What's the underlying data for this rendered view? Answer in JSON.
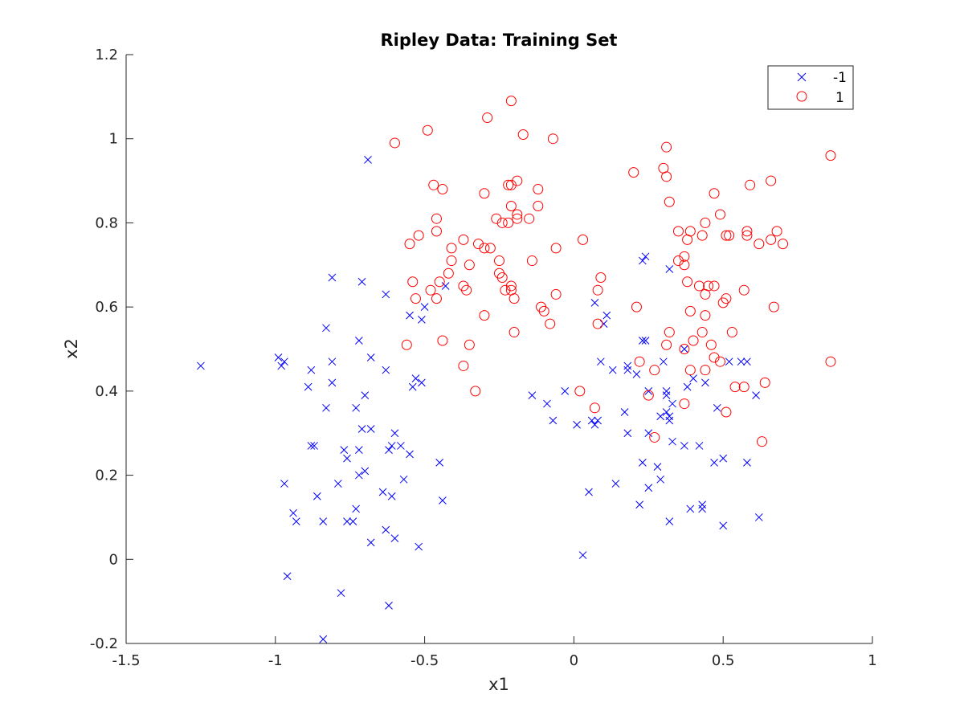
{
  "chart_data": {
    "type": "scatter",
    "title": "Ripley Data: Training Set",
    "xlabel": "x1",
    "ylabel": "x2",
    "xlim": [
      -1.5,
      1
    ],
    "ylim": [
      -0.2,
      1.2
    ],
    "xticks": [
      "-1.5",
      "-1",
      "-0.5",
      "0",
      "0.5",
      "1"
    ],
    "yticks": [
      "-0.2",
      "0",
      "0.2",
      "0.4",
      "0.6",
      "0.8",
      "1",
      "1.2"
    ],
    "grid": false,
    "legend_position": "top-right",
    "series": [
      {
        "name": "-1",
        "marker": "x",
        "color": "#0000ff",
        "points": [
          [
            -1.25,
            0.46
          ],
          [
            -0.69,
            0.95
          ],
          [
            -0.99,
            0.48
          ],
          [
            -0.98,
            0.46
          ],
          [
            -0.97,
            0.47
          ],
          [
            -0.81,
            0.67
          ],
          [
            -0.83,
            0.55
          ],
          [
            -0.71,
            0.66
          ],
          [
            -0.63,
            0.63
          ],
          [
            -0.88,
            0.45
          ],
          [
            -0.81,
            0.47
          ],
          [
            -0.81,
            0.42
          ],
          [
            -0.89,
            0.41
          ],
          [
            -0.83,
            0.36
          ],
          [
            -0.72,
            0.52
          ],
          [
            -0.68,
            0.48
          ],
          [
            -0.63,
            0.45
          ],
          [
            -0.7,
            0.39
          ],
          [
            -0.73,
            0.36
          ],
          [
            -0.71,
            0.31
          ],
          [
            -0.68,
            0.31
          ],
          [
            -0.55,
            0.58
          ],
          [
            -0.5,
            0.6
          ],
          [
            -0.51,
            0.57
          ],
          [
            -0.43,
            0.65
          ],
          [
            -0.54,
            0.41
          ],
          [
            -0.53,
            0.43
          ],
          [
            -0.51,
            0.42
          ],
          [
            -0.88,
            0.27
          ],
          [
            -0.87,
            0.27
          ],
          [
            -0.77,
            0.26
          ],
          [
            -0.76,
            0.24
          ],
          [
            -0.72,
            0.26
          ],
          [
            -0.6,
            0.3
          ],
          [
            -0.61,
            0.27
          ],
          [
            -0.58,
            0.27
          ],
          [
            -0.55,
            0.25
          ],
          [
            -0.62,
            0.26
          ],
          [
            -0.72,
            0.2
          ],
          [
            -0.7,
            0.21
          ],
          [
            -0.57,
            0.19
          ],
          [
            -0.45,
            0.23
          ],
          [
            -0.97,
            0.18
          ],
          [
            -0.79,
            0.18
          ],
          [
            -0.86,
            0.15
          ],
          [
            -0.64,
            0.16
          ],
          [
            -0.61,
            0.15
          ],
          [
            -0.94,
            0.11
          ],
          [
            -0.93,
            0.09
          ],
          [
            -0.84,
            0.09
          ],
          [
            -0.76,
            0.09
          ],
          [
            -0.74,
            0.09
          ],
          [
            -0.73,
            0.12
          ],
          [
            -0.44,
            0.14
          ],
          [
            -0.63,
            0.07
          ],
          [
            -0.6,
            0.05
          ],
          [
            -0.68,
            0.04
          ],
          [
            -0.52,
            0.03
          ],
          [
            -0.96,
            -0.04
          ],
          [
            -0.78,
            -0.08
          ],
          [
            -0.62,
            -0.11
          ],
          [
            -0.84,
            -0.19
          ],
          [
            0.24,
            0.72
          ],
          [
            0.23,
            0.71
          ],
          [
            0.32,
            0.69
          ],
          [
            0.07,
            0.61
          ],
          [
            0.11,
            0.58
          ],
          [
            0.1,
            0.56
          ],
          [
            0.24,
            0.52
          ],
          [
            0.23,
            0.52
          ],
          [
            0.37,
            0.5
          ],
          [
            0.09,
            0.47
          ],
          [
            0.13,
            0.45
          ],
          [
            0.18,
            0.46
          ],
          [
            0.18,
            0.45
          ],
          [
            0.21,
            0.44
          ],
          [
            0.3,
            0.47
          ],
          [
            0.4,
            0.43
          ],
          [
            0.38,
            0.41
          ],
          [
            0.44,
            0.42
          ],
          [
            0.52,
            0.47
          ],
          [
            0.56,
            0.47
          ],
          [
            0.58,
            0.47
          ],
          [
            -0.14,
            0.39
          ],
          [
            -0.03,
            0.4
          ],
          [
            -0.09,
            0.37
          ],
          [
            -0.07,
            0.33
          ],
          [
            0.01,
            0.32
          ],
          [
            0.06,
            0.33
          ],
          [
            0.07,
            0.32
          ],
          [
            0.08,
            0.33
          ],
          [
            0.25,
            0.4
          ],
          [
            0.31,
            0.4
          ],
          [
            0.31,
            0.39
          ],
          [
            0.33,
            0.37
          ],
          [
            0.17,
            0.35
          ],
          [
            0.29,
            0.34
          ],
          [
            0.31,
            0.35
          ],
          [
            0.32,
            0.34
          ],
          [
            0.32,
            0.33
          ],
          [
            0.48,
            0.36
          ],
          [
            0.61,
            0.39
          ],
          [
            0.18,
            0.3
          ],
          [
            0.25,
            0.3
          ],
          [
            0.33,
            0.28
          ],
          [
            0.37,
            0.27
          ],
          [
            0.42,
            0.27
          ],
          [
            0.23,
            0.23
          ],
          [
            0.28,
            0.22
          ],
          [
            0.47,
            0.23
          ],
          [
            0.5,
            0.24
          ],
          [
            0.58,
            0.23
          ],
          [
            0.29,
            0.19
          ],
          [
            0.14,
            0.18
          ],
          [
            0.25,
            0.17
          ],
          [
            0.05,
            0.16
          ],
          [
            0.22,
            0.13
          ],
          [
            0.39,
            0.12
          ],
          [
            0.43,
            0.13
          ],
          [
            0.43,
            0.12
          ],
          [
            0.32,
            0.09
          ],
          [
            0.5,
            0.08
          ],
          [
            0.62,
            0.1
          ],
          [
            0.03,
            0.01
          ]
        ]
      },
      {
        "name": "1",
        "marker": "o",
        "color": "#ff0000",
        "points": [
          [
            -0.21,
            1.09
          ],
          [
            -0.29,
            1.05
          ],
          [
            -0.49,
            1.02
          ],
          [
            -0.6,
            0.99
          ],
          [
            -0.17,
            1.01
          ],
          [
            -0.07,
            1.0
          ],
          [
            0.86,
            0.96
          ],
          [
            0.31,
            0.98
          ],
          [
            0.3,
            0.93
          ],
          [
            0.2,
            0.92
          ],
          [
            0.31,
            0.91
          ],
          [
            0.59,
            0.89
          ],
          [
            0.66,
            0.9
          ],
          [
            0.47,
            0.87
          ],
          [
            -0.47,
            0.89
          ],
          [
            -0.44,
            0.88
          ],
          [
            -0.3,
            0.87
          ],
          [
            -0.22,
            0.89
          ],
          [
            -0.21,
            0.89
          ],
          [
            -0.19,
            0.9
          ],
          [
            -0.12,
            0.88
          ],
          [
            -0.12,
            0.84
          ],
          [
            -0.21,
            0.84
          ],
          [
            -0.26,
            0.81
          ],
          [
            -0.24,
            0.8
          ],
          [
            -0.22,
            0.8
          ],
          [
            -0.19,
            0.82
          ],
          [
            -0.19,
            0.81
          ],
          [
            -0.15,
            0.81
          ],
          [
            0.32,
            0.85
          ],
          [
            0.49,
            0.82
          ],
          [
            -0.46,
            0.81
          ],
          [
            -0.46,
            0.78
          ],
          [
            -0.52,
            0.77
          ],
          [
            -0.55,
            0.75
          ],
          [
            -0.41,
            0.74
          ],
          [
            -0.37,
            0.76
          ],
          [
            -0.32,
            0.75
          ],
          [
            -0.3,
            0.74
          ],
          [
            -0.28,
            0.74
          ],
          [
            0.03,
            0.76
          ],
          [
            0.35,
            0.78
          ],
          [
            0.38,
            0.76
          ],
          [
            0.39,
            0.78
          ],
          [
            0.43,
            0.77
          ],
          [
            0.44,
            0.8
          ],
          [
            0.51,
            0.77
          ],
          [
            0.52,
            0.77
          ],
          [
            0.58,
            0.78
          ],
          [
            0.58,
            0.77
          ],
          [
            0.62,
            0.75
          ],
          [
            0.66,
            0.76
          ],
          [
            0.68,
            0.78
          ],
          [
            0.7,
            0.75
          ],
          [
            -0.41,
            0.71
          ],
          [
            -0.35,
            0.7
          ],
          [
            -0.25,
            0.71
          ],
          [
            -0.14,
            0.71
          ],
          [
            -0.06,
            0.74
          ],
          [
            0.35,
            0.71
          ],
          [
            0.37,
            0.72
          ],
          [
            0.37,
            0.7
          ],
          [
            -0.25,
            0.68
          ],
          [
            -0.42,
            0.68
          ],
          [
            -0.45,
            0.66
          ],
          [
            -0.24,
            0.67
          ],
          [
            -0.54,
            0.66
          ],
          [
            -0.48,
            0.64
          ],
          [
            -0.46,
            0.62
          ],
          [
            -0.37,
            0.65
          ],
          [
            -0.36,
            0.64
          ],
          [
            -0.23,
            0.64
          ],
          [
            -0.21,
            0.65
          ],
          [
            -0.21,
            0.64
          ],
          [
            -0.2,
            0.62
          ],
          [
            0.08,
            0.64
          ],
          [
            0.09,
            0.67
          ],
          [
            -0.53,
            0.62
          ],
          [
            -0.06,
            0.63
          ],
          [
            0.38,
            0.66
          ],
          [
            0.42,
            0.65
          ],
          [
            0.45,
            0.65
          ],
          [
            0.47,
            0.65
          ],
          [
            0.44,
            0.63
          ],
          [
            -0.11,
            0.6
          ],
          [
            -0.1,
            0.59
          ],
          [
            -0.3,
            0.58
          ],
          [
            0.21,
            0.6
          ],
          [
            0.39,
            0.59
          ],
          [
            0.44,
            0.58
          ],
          [
            0.5,
            0.61
          ],
          [
            0.51,
            0.62
          ],
          [
            0.57,
            0.64
          ],
          [
            0.67,
            0.6
          ],
          [
            -0.08,
            0.56
          ],
          [
            0.08,
            0.56
          ],
          [
            -0.2,
            0.54
          ],
          [
            -0.56,
            0.51
          ],
          [
            -0.44,
            0.52
          ],
          [
            -0.35,
            0.51
          ],
          [
            0.32,
            0.54
          ],
          [
            0.43,
            0.54
          ],
          [
            0.53,
            0.54
          ],
          [
            0.31,
            0.51
          ],
          [
            0.4,
            0.52
          ],
          [
            0.37,
            0.5
          ],
          [
            0.46,
            0.51
          ],
          [
            0.47,
            0.48
          ],
          [
            0.49,
            0.47
          ],
          [
            -0.37,
            0.46
          ],
          [
            0.22,
            0.47
          ],
          [
            0.27,
            0.45
          ],
          [
            0.39,
            0.45
          ],
          [
            0.44,
            0.45
          ],
          [
            0.86,
            0.47
          ],
          [
            0.54,
            0.41
          ],
          [
            0.57,
            0.41
          ],
          [
            0.64,
            0.42
          ],
          [
            0.02,
            0.4
          ],
          [
            -0.33,
            0.4
          ],
          [
            0.25,
            0.39
          ],
          [
            0.37,
            0.37
          ],
          [
            0.07,
            0.36
          ],
          [
            0.51,
            0.35
          ],
          [
            0.27,
            0.29
          ],
          [
            0.63,
            0.28
          ]
        ]
      }
    ]
  }
}
